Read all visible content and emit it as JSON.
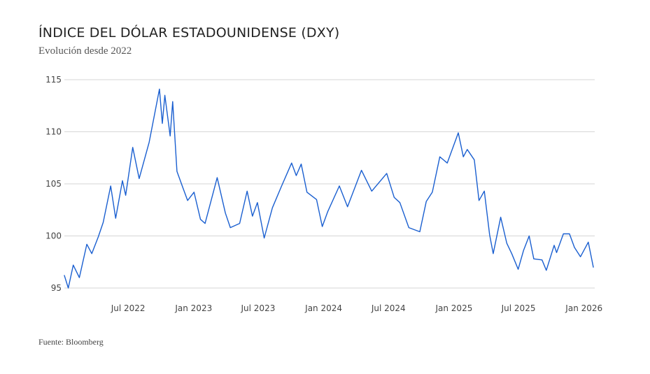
{
  "header": {
    "title": "ÍNDICE DEL DÓLAR ESTADOUNIDENSE (DXY)",
    "subtitle": "Evolución desde 2022"
  },
  "footer": {
    "source": "Fuente: Bloomberg"
  },
  "colors": {
    "line": "#1a5fd0",
    "grid": "#d6d6d6",
    "text": "#444444"
  },
  "chart_data": {
    "type": "line",
    "title": "ÍNDICE DEL DÓLAR ESTADOUNIDENSE (DXY)",
    "subtitle": "Evolución desde 2022",
    "xlabel": "",
    "ylabel": "",
    "ylim": [
      95,
      115
    ],
    "xlim": [
      "2022-01-03",
      "2026-01-31"
    ],
    "y_ticks": [
      95,
      100,
      105,
      110,
      115
    ],
    "x_ticks": [
      {
        "date": "2022-07-01",
        "label": "Jul 2022"
      },
      {
        "date": "2023-01-01",
        "label": "Jan 2023"
      },
      {
        "date": "2023-07-01",
        "label": "Jul 2023"
      },
      {
        "date": "2024-01-01",
        "label": "Jan 2024"
      },
      {
        "date": "2024-07-01",
        "label": "Jul 2024"
      },
      {
        "date": "2025-01-01",
        "label": "Jan 2025"
      },
      {
        "date": "2025-07-01",
        "label": "Jul 2025"
      },
      {
        "date": "2026-01-01",
        "label": "Jan 2026"
      }
    ],
    "grid": "horizontal",
    "legend": "none",
    "series": [
      {
        "points": [
          [
            "2022-01-03",
            96.2
          ],
          [
            "2022-01-14",
            95.0
          ],
          [
            "2022-01-28",
            97.2
          ],
          [
            "2022-02-14",
            96.0
          ],
          [
            "2022-03-07",
            99.2
          ],
          [
            "2022-03-21",
            98.3
          ],
          [
            "2022-04-08",
            99.9
          ],
          [
            "2022-04-22",
            101.3
          ],
          [
            "2022-05-13",
            104.8
          ],
          [
            "2022-05-27",
            101.7
          ],
          [
            "2022-06-15",
            105.3
          ],
          [
            "2022-06-24",
            103.9
          ],
          [
            "2022-07-14",
            108.5
          ],
          [
            "2022-08-01",
            105.5
          ],
          [
            "2022-08-29",
            109.0
          ],
          [
            "2022-09-27",
            114.1
          ],
          [
            "2022-10-05",
            110.8
          ],
          [
            "2022-10-12",
            113.5
          ],
          [
            "2022-10-27",
            109.6
          ],
          [
            "2022-11-03",
            112.9
          ],
          [
            "2022-11-15",
            106.2
          ],
          [
            "2022-12-01",
            104.7
          ],
          [
            "2022-12-15",
            103.4
          ],
          [
            "2023-01-02",
            104.2
          ],
          [
            "2023-01-20",
            101.6
          ],
          [
            "2023-02-02",
            101.2
          ],
          [
            "2023-03-08",
            105.6
          ],
          [
            "2023-03-31",
            102.2
          ],
          [
            "2023-04-14",
            100.8
          ],
          [
            "2023-05-10",
            101.2
          ],
          [
            "2023-05-31",
            104.3
          ],
          [
            "2023-06-15",
            101.9
          ],
          [
            "2023-06-29",
            103.2
          ],
          [
            "2023-07-18",
            99.8
          ],
          [
            "2023-08-10",
            102.7
          ],
          [
            "2023-09-05",
            104.8
          ],
          [
            "2023-10-03",
            107.0
          ],
          [
            "2023-10-16",
            105.8
          ],
          [
            "2023-10-30",
            106.9
          ],
          [
            "2023-11-15",
            104.2
          ],
          [
            "2023-12-12",
            103.5
          ],
          [
            "2023-12-28",
            100.9
          ],
          [
            "2024-01-12",
            102.3
          ],
          [
            "2024-02-14",
            104.8
          ],
          [
            "2024-03-08",
            102.8
          ],
          [
            "2024-04-16",
            106.3
          ],
          [
            "2024-05-15",
            104.3
          ],
          [
            "2024-06-26",
            106.0
          ],
          [
            "2024-07-17",
            103.7
          ],
          [
            "2024-08-02",
            103.2
          ],
          [
            "2024-08-27",
            100.8
          ],
          [
            "2024-09-27",
            100.4
          ],
          [
            "2024-10-15",
            103.3
          ],
          [
            "2024-11-01",
            104.2
          ],
          [
            "2024-11-22",
            107.6
          ],
          [
            "2024-12-13",
            107.0
          ],
          [
            "2025-01-13",
            109.9
          ],
          [
            "2025-01-27",
            107.6
          ],
          [
            "2025-02-07",
            108.3
          ],
          [
            "2025-02-27",
            107.3
          ],
          [
            "2025-03-12",
            103.4
          ],
          [
            "2025-03-27",
            104.3
          ],
          [
            "2025-04-11",
            100.1
          ],
          [
            "2025-04-21",
            98.3
          ],
          [
            "2025-05-12",
            101.8
          ],
          [
            "2025-05-29",
            99.3
          ],
          [
            "2025-06-12",
            98.3
          ],
          [
            "2025-06-30",
            96.8
          ],
          [
            "2025-07-15",
            98.6
          ],
          [
            "2025-07-31",
            100.0
          ],
          [
            "2025-08-13",
            97.8
          ],
          [
            "2025-09-05",
            97.7
          ],
          [
            "2025-09-17",
            96.7
          ],
          [
            "2025-10-09",
            99.1
          ],
          [
            "2025-10-16",
            98.4
          ],
          [
            "2025-11-04",
            100.2
          ],
          [
            "2025-11-21",
            100.2
          ],
          [
            "2025-12-05",
            98.9
          ],
          [
            "2025-12-22",
            98.0
          ],
          [
            "2026-01-13",
            99.4
          ],
          [
            "2026-01-27",
            97.0
          ]
        ]
      }
    ]
  }
}
